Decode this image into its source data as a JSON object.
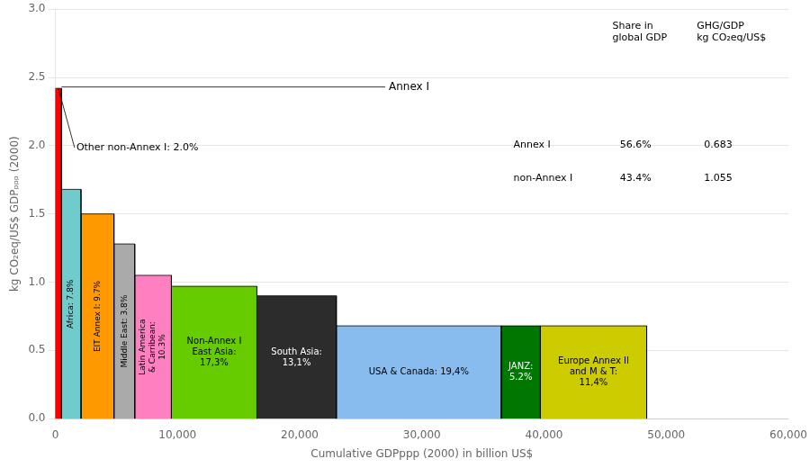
{
  "chart_data": {
    "type": "bar",
    "categories": [
      null,
      "Africa: 7.8%",
      "EIT Annex I: 9.7%",
      "Middle East: 3.8%",
      "Latin America\n& Carribean:\n10.3%",
      "Non-Annex I\nEast Asia:\n17,3%",
      "South Asia:\n13,1%",
      "USA & Canada: 19,4%",
      "JANZ:\n5.2%",
      "Europe Annex II\nand M & T:\n11,4%"
    ],
    "values": [
      2.42,
      1.68,
      1.5,
      1.28,
      1.05,
      0.97,
      0.9,
      0.68,
      0.68,
      0.68
    ],
    "widths": [
      500,
      1600,
      2700,
      1700,
      3000,
      7000,
      6500,
      13500,
      3200,
      8700
    ],
    "colors": [
      "#FF0000",
      "#70CCCC",
      "#FF9900",
      "#AAAAAA",
      "#FF80C0",
      "#66CC00",
      "#2C2C2C",
      "#88BBEE",
      "#007700",
      "#CCCC00"
    ],
    "xlabel": "Cumulative GDPppp (2000) in billion US$",
    "ylabel": "kg CO₂eq/US$ GDPₚₚₚ (2000)",
    "xlim": [
      0,
      60000
    ],
    "ylim": [
      0,
      3.0
    ],
    "xticks": [
      0,
      {
        "value": 10000,
        "label": "10,000"
      },
      {
        "value": 20000,
        "label": "20,000"
      },
      {
        "value": 30000,
        "label": "30,000"
      },
      {
        "value": 40000,
        "label": "40,000"
      },
      {
        "value": 50000,
        "label": "50,000"
      },
      {
        "value": 60000,
        "label": "60,000"
      }
    ],
    "yticks": [
      {
        "value": 0,
        "label": "0.0"
      },
      0.5,
      {
        "value": 1.0,
        "label": "1.0"
      },
      1.5,
      {
        "value": 2.0,
        "label": "2.0"
      },
      2.5,
      {
        "value": 3.0,
        "label": "3.0"
      }
    ],
    "grid": true,
    "annotations": [
      {
        "text": "Other non-Annex I: 2.0%",
        "x": 250,
        "y": 2.42
      },
      {
        "text": "Annex I",
        "x": [
          500,
          27000
        ],
        "y": 2.43
      }
    ],
    "table": {
      "columns": [
        "Share in\nglobal GDP",
        "GHG/GDP\nkg CO₂eq/US$"
      ],
      "rows": [
        {
          "label": "Annex I",
          "cells": [
            "56.6%",
            "0.683"
          ]
        },
        {
          "label": "non-Annex I",
          "cells": [
            "43.4%",
            "1.055"
          ]
        }
      ]
    }
  }
}
